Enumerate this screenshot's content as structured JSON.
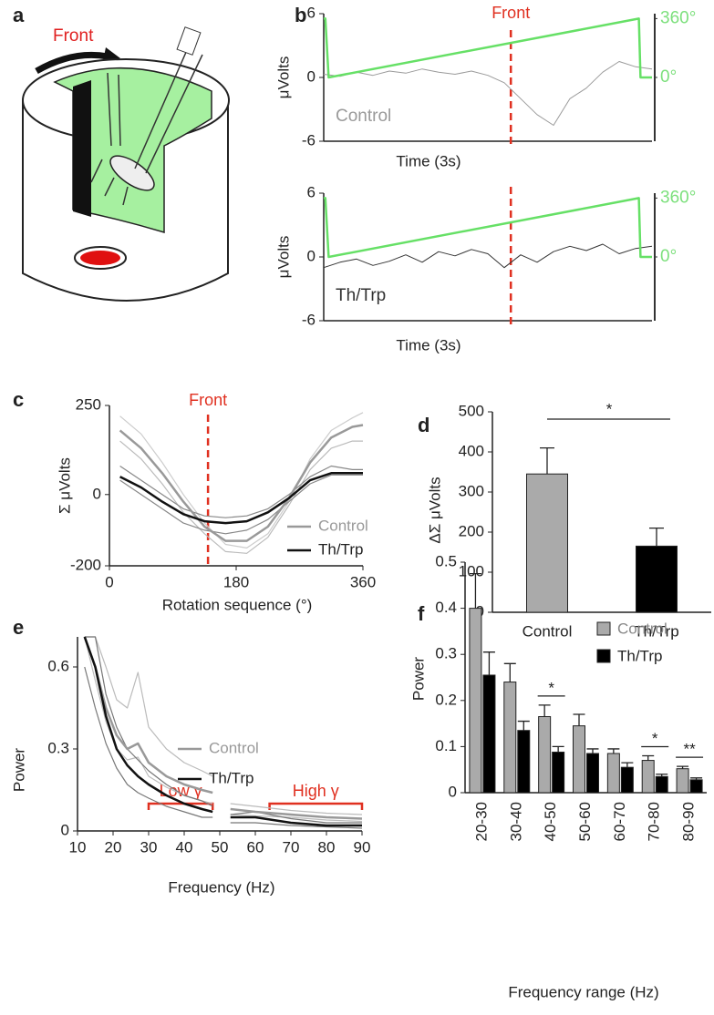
{
  "illustration": {
    "panel": "a",
    "annotation": "Front"
  },
  "chart_data": [
    {
      "panel": "b",
      "type": "line",
      "annotation": {
        "text": "Front",
        "x": 0.57
      },
      "xlabel": "Time (3s)",
      "ylabel": "μVolts",
      "xlim": [
        0,
        1
      ],
      "ylim": [
        -6,
        6
      ],
      "yticks": [
        6,
        0,
        -6
      ],
      "y2lim": [
        -390,
        390
      ],
      "y2ticks": [
        {
          "value": 360,
          "label": "360°"
        },
        {
          "value": 0,
          "label": "0°"
        }
      ],
      "x": [
        0,
        0.05,
        0.1,
        0.15,
        0.2,
        0.25,
        0.3,
        0.35,
        0.4,
        0.45,
        0.5,
        0.55,
        0.6,
        0.65,
        0.7,
        0.75,
        0.8,
        0.85,
        0.9,
        0.95,
        1
      ],
      "series": [
        {
          "name": "Control",
          "color": "#9a9a9a",
          "values": [
            0.3,
            0.1,
            0.5,
            0.2,
            0.6,
            0.4,
            0.8,
            0.5,
            0.3,
            0.6,
            0.2,
            -0.5,
            -2,
            -3.5,
            -4.5,
            -2,
            -1,
            0.5,
            1.5,
            1,
            0.8
          ]
        },
        {
          "color": "#66e066",
          "axis": "y2",
          "x": [
            0,
            0.005,
            0.015,
            0.96,
            0.965,
            1
          ],
          "values": [
            360,
            360,
            0,
            360,
            0,
            0
          ]
        }
      ]
    },
    {
      "type": "line",
      "xlabel": "Time (3s)",
      "ylabel": "μVolts",
      "xlim": [
        0,
        1
      ],
      "ylim": [
        -6,
        6
      ],
      "yticks": [
        6,
        0,
        -6
      ],
      "y2lim": [
        -390,
        390
      ],
      "y2ticks": [
        {
          "value": 360,
          "label": "360°"
        },
        {
          "value": 0,
          "label": "0°"
        }
      ],
      "x": [
        0,
        0.05,
        0.1,
        0.15,
        0.2,
        0.25,
        0.3,
        0.35,
        0.4,
        0.45,
        0.5,
        0.55,
        0.6,
        0.65,
        0.7,
        0.75,
        0.8,
        0.85,
        0.9,
        0.95,
        1
      ],
      "series": [
        {
          "name": "Th/Trp",
          "color": "#333333",
          "values": [
            -1,
            -0.5,
            -0.2,
            -0.8,
            -0.4,
            0.2,
            -0.5,
            0.5,
            0.1,
            0.7,
            0.3,
            -1,
            0.2,
            -0.5,
            0.5,
            1,
            0.6,
            1.2,
            0.3,
            0.8,
            1
          ]
        },
        {
          "color": "#66e066",
          "axis": "y2",
          "x": [
            0,
            0.005,
            0.015,
            0.96,
            0.965,
            1
          ],
          "values": [
            360,
            360,
            0,
            360,
            0,
            0
          ]
        }
      ]
    },
    {
      "panel": "c",
      "type": "line",
      "annotation": {
        "text": "Front",
        "x": 140
      },
      "xlabel": "Rotation sequence (°)",
      "ylabel": "Σ μVolts",
      "xlim": [
        0,
        360
      ],
      "ylim": [
        -200,
        250
      ],
      "xticks": [
        0,
        180,
        360
      ],
      "yticks": [
        250,
        0,
        -200
      ],
      "x": [
        15,
        45,
        75,
        105,
        135,
        165,
        195,
        225,
        255,
        285,
        315,
        345,
        360
      ],
      "series": [
        {
          "color": "#cccccc",
          "values": [
            220,
            170,
            90,
            0,
            -80,
            -140,
            -150,
            -110,
            -20,
            100,
            180,
            215,
            230
          ]
        },
        {
          "color": "#bbbbbb",
          "values": [
            150,
            100,
            30,
            -50,
            -110,
            -160,
            -165,
            -120,
            -30,
            70,
            130,
            150,
            150
          ]
        },
        {
          "color": "#888888",
          "values": [
            80,
            40,
            0,
            -40,
            -60,
            -65,
            -60,
            -40,
            0,
            50,
            80,
            70,
            70
          ]
        },
        {
          "color": "#888888",
          "values": [
            40,
            0,
            -40,
            -80,
            -100,
            -110,
            -100,
            -70,
            -20,
            30,
            55,
            55,
            55
          ]
        },
        {
          "name": "Control",
          "color": "#999999",
          "values": [
            180,
            130,
            60,
            -20,
            -90,
            -130,
            -130,
            -90,
            -10,
            90,
            160,
            190,
            195
          ]
        },
        {
          "name": "Th/Trp",
          "color": "#111111",
          "values": [
            50,
            20,
            -20,
            -55,
            -75,
            -80,
            -75,
            -50,
            -10,
            40,
            60,
            60,
            60
          ]
        }
      ]
    },
    {
      "panel": "d",
      "type": "bar",
      "ylabel": "ΔΣ μVolts",
      "categories": [
        "Control",
        "Th/Trp"
      ],
      "ylim": [
        0,
        500
      ],
      "yticks": [
        0,
        100,
        200,
        300,
        400,
        500
      ],
      "significance": "*",
      "series": [
        {
          "values": [
            345,
            165
          ],
          "errors": [
            65,
            45
          ],
          "colors": [
            "#aaaaaa",
            "#000000"
          ]
        }
      ]
    },
    {
      "panel": "e",
      "type": "line",
      "xlabel": "Frequency (Hz)",
      "ylabel": "Power",
      "xlim": [
        10,
        90
      ],
      "ylim": [
        0,
        0.71
      ],
      "xticks": [
        10,
        20,
        30,
        40,
        50,
        60,
        70,
        80,
        90
      ],
      "yticks": [
        0,
        0.3,
        0.6
      ],
      "brackets": [
        {
          "text": "Low γ",
          "from": 30,
          "to": 48
        },
        {
          "text": "High γ",
          "from": 64,
          "to": 90
        }
      ],
      "x": [
        12,
        15,
        18,
        21,
        24,
        27,
        30,
        35,
        40,
        45,
        48,
        50,
        53,
        60,
        70,
        80,
        90
      ],
      "series": [
        {
          "color": "#bbbbbb",
          "values": [
            0.71,
            0.71,
            0.6,
            0.48,
            0.45,
            0.58,
            0.38,
            0.3,
            0.25,
            0.22,
            0.2,
            null,
            0.1,
            0.09,
            0.075,
            0.065,
            0.06
          ]
        },
        {
          "color": "#bbbbbb",
          "values": [
            0.71,
            0.55,
            0.4,
            0.3,
            0.26,
            0.27,
            0.2,
            0.16,
            0.13,
            0.11,
            0.1,
            null,
            0.06,
            0.055,
            0.05,
            0.04,
            0.035
          ]
        },
        {
          "color": "#777777",
          "values": [
            0.71,
            0.71,
            0.5,
            0.38,
            0.3,
            0.26,
            0.22,
            0.17,
            0.13,
            0.11,
            0.09,
            null,
            0.06,
            0.07,
            0.045,
            0.03,
            0.03
          ]
        },
        {
          "color": "#777777",
          "values": [
            0.6,
            0.45,
            0.32,
            0.23,
            0.17,
            0.14,
            0.12,
            0.09,
            0.07,
            0.05,
            0.05,
            null,
            0.03,
            0.03,
            0.02,
            0.015,
            0.01
          ]
        },
        {
          "name": "Control",
          "color": "#999999",
          "values": [
            0.71,
            0.6,
            0.45,
            0.35,
            0.3,
            0.32,
            0.25,
            0.2,
            0.17,
            0.15,
            0.14,
            null,
            0.08,
            0.07,
            0.06,
            0.05,
            0.045
          ]
        },
        {
          "name": "Th/Trp",
          "color": "#111111",
          "values": [
            0.71,
            0.6,
            0.42,
            0.3,
            0.24,
            0.2,
            0.17,
            0.13,
            0.1,
            0.08,
            0.07,
            null,
            0.05,
            0.05,
            0.03,
            0.02,
            0.02
          ]
        }
      ]
    },
    {
      "panel": "f",
      "type": "bar",
      "xlabel": "Frequency range (Hz)",
      "ylabel": "Power",
      "categories": [
        "20-30",
        "30-40",
        "40-50",
        "50-60",
        "60-70",
        "70-80",
        "80-90"
      ],
      "ylim": [
        0,
        0.5
      ],
      "yticks": [
        0,
        0.1,
        0.2,
        0.3,
        0.4,
        0.5
      ],
      "significance": [
        null,
        null,
        "*",
        null,
        null,
        "*",
        "**"
      ],
      "series": [
        {
          "name": "Control",
          "color": "#aaaaaa",
          "values": [
            0.4,
            0.24,
            0.165,
            0.145,
            0.085,
            0.07,
            0.052
          ],
          "errors": [
            0.075,
            0.04,
            0.025,
            0.025,
            0.01,
            0.01,
            0.005
          ]
        },
        {
          "name": "Th/Trp",
          "color": "#000000",
          "values": [
            0.255,
            0.135,
            0.088,
            0.085,
            0.055,
            0.035,
            0.028
          ],
          "errors": [
            0.05,
            0.02,
            0.012,
            0.01,
            0.01,
            0.005,
            0.004
          ]
        }
      ]
    }
  ]
}
